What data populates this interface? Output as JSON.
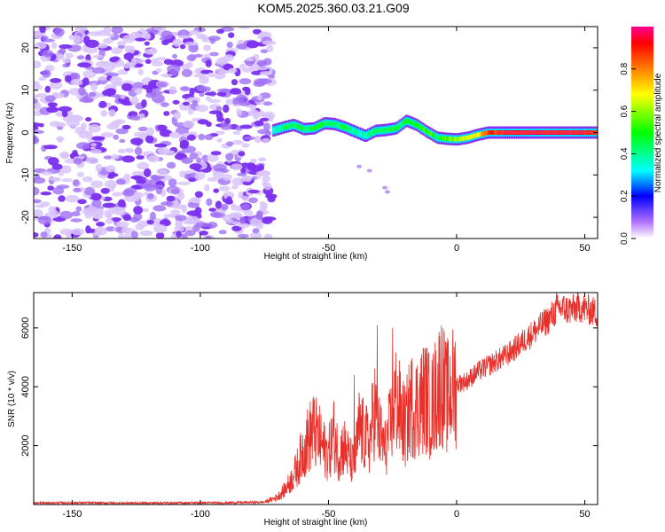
{
  "title": "KOM5.2025.360.03.21.G09",
  "chart_data": [
    {
      "type": "heatmap",
      "xlabel": "Height of straight line (km)",
      "ylabel": "Frequency (Hz)",
      "xlim": [
        -165,
        55
      ],
      "ylim": [
        -25,
        25
      ],
      "xticks": [
        -150,
        -100,
        -50,
        0,
        50
      ],
      "yticks": [
        -20,
        -10,
        0,
        10,
        20
      ],
      "noise_region_x": [
        -165,
        -72
      ],
      "signal_track": {
        "x": [
          -72,
          -68,
          -64,
          -60,
          -56,
          -52,
          -48,
          -44,
          -40,
          -36,
          -32,
          -28,
          -24,
          -20,
          -16,
          -12,
          -8,
          -4,
          0,
          4,
          8,
          12,
          16,
          20,
          30,
          40,
          55
        ],
        "freq": [
          0.5,
          1.2,
          1.8,
          0.8,
          1.0,
          2.2,
          2.0,
          1.2,
          0.2,
          -0.8,
          0.4,
          0.6,
          1.0,
          2.8,
          1.8,
          0.2,
          -1.2,
          -1.5,
          -1.6,
          -1.2,
          -0.5,
          0,
          0,
          0,
          0,
          0,
          0
        ],
        "amplitude": [
          0.3,
          0.45,
          0.4,
          0.45,
          0.5,
          0.45,
          0.4,
          0.45,
          0.4,
          0.35,
          0.45,
          0.4,
          0.45,
          0.45,
          0.5,
          0.55,
          0.45,
          0.55,
          0.6,
          0.65,
          0.7,
          0.85,
          0.9,
          0.95,
          0.95,
          0.95,
          0.9
        ]
      },
      "colorbar": {
        "label": "Normalized spectral amplitude",
        "range": [
          0,
          1
        ],
        "ticks": [
          "0.0",
          "0.2",
          "0.4",
          "0.6",
          "0.8"
        ],
        "tick_values": [
          0,
          0.2,
          0.4,
          0.6,
          0.8
        ]
      }
    },
    {
      "type": "line",
      "xlabel": "Height of straight line (km)",
      "ylabel": "SNR (10 * v/v)",
      "xlim": [
        -165,
        55
      ],
      "ylim": [
        0,
        7200
      ],
      "xticks": [
        -150,
        -100,
        -50,
        0,
        50
      ],
      "yticks": [
        2000,
        4000,
        6000
      ],
      "series": [
        {
          "name": "SNR",
          "color": "#e8302a",
          "x": [
            -165,
            -150,
            -130,
            -110,
            -90,
            -75,
            -70,
            -67,
            -64,
            -62,
            -60,
            -58,
            -56,
            -54,
            -52,
            -50,
            -48,
            -46,
            -44,
            -42,
            -40,
            -38,
            -36,
            -34,
            -32,
            -30,
            -28,
            -26,
            -24,
            -22,
            -20,
            -18,
            -16,
            -14,
            -12,
            -10,
            -8,
            -6,
            -4,
            -2,
            0,
            4,
            8,
            12,
            16,
            20,
            24,
            28,
            32,
            36,
            40,
            44,
            48,
            52,
            55
          ],
          "y": [
            50,
            60,
            50,
            55,
            60,
            80,
            250,
            500,
            900,
            1300,
            1800,
            2200,
            2500,
            2300,
            1900,
            1700,
            2400,
            1700,
            2000,
            1600,
            1300,
            2600,
            2300,
            2100,
            3300,
            2400,
            1900,
            2600,
            3600,
            3100,
            2600,
            3400,
            3300,
            3500,
            3700,
            3200,
            3800,
            4300,
            3600,
            3900,
            4100,
            4200,
            4500,
            4700,
            4900,
            5100,
            5400,
            5700,
            6000,
            6300,
            6700,
            6600,
            6700,
            6600,
            6500
          ]
        }
      ],
      "spikes": [
        {
          "x": -31,
          "y": 6100
        },
        {
          "x": -25,
          "y": 6000
        },
        {
          "x": -40,
          "y": 4400
        },
        {
          "x": -56,
          "y": 3500
        },
        {
          "x": 39,
          "y": 7200
        },
        {
          "x": 44,
          "y": 7000
        }
      ]
    }
  ]
}
